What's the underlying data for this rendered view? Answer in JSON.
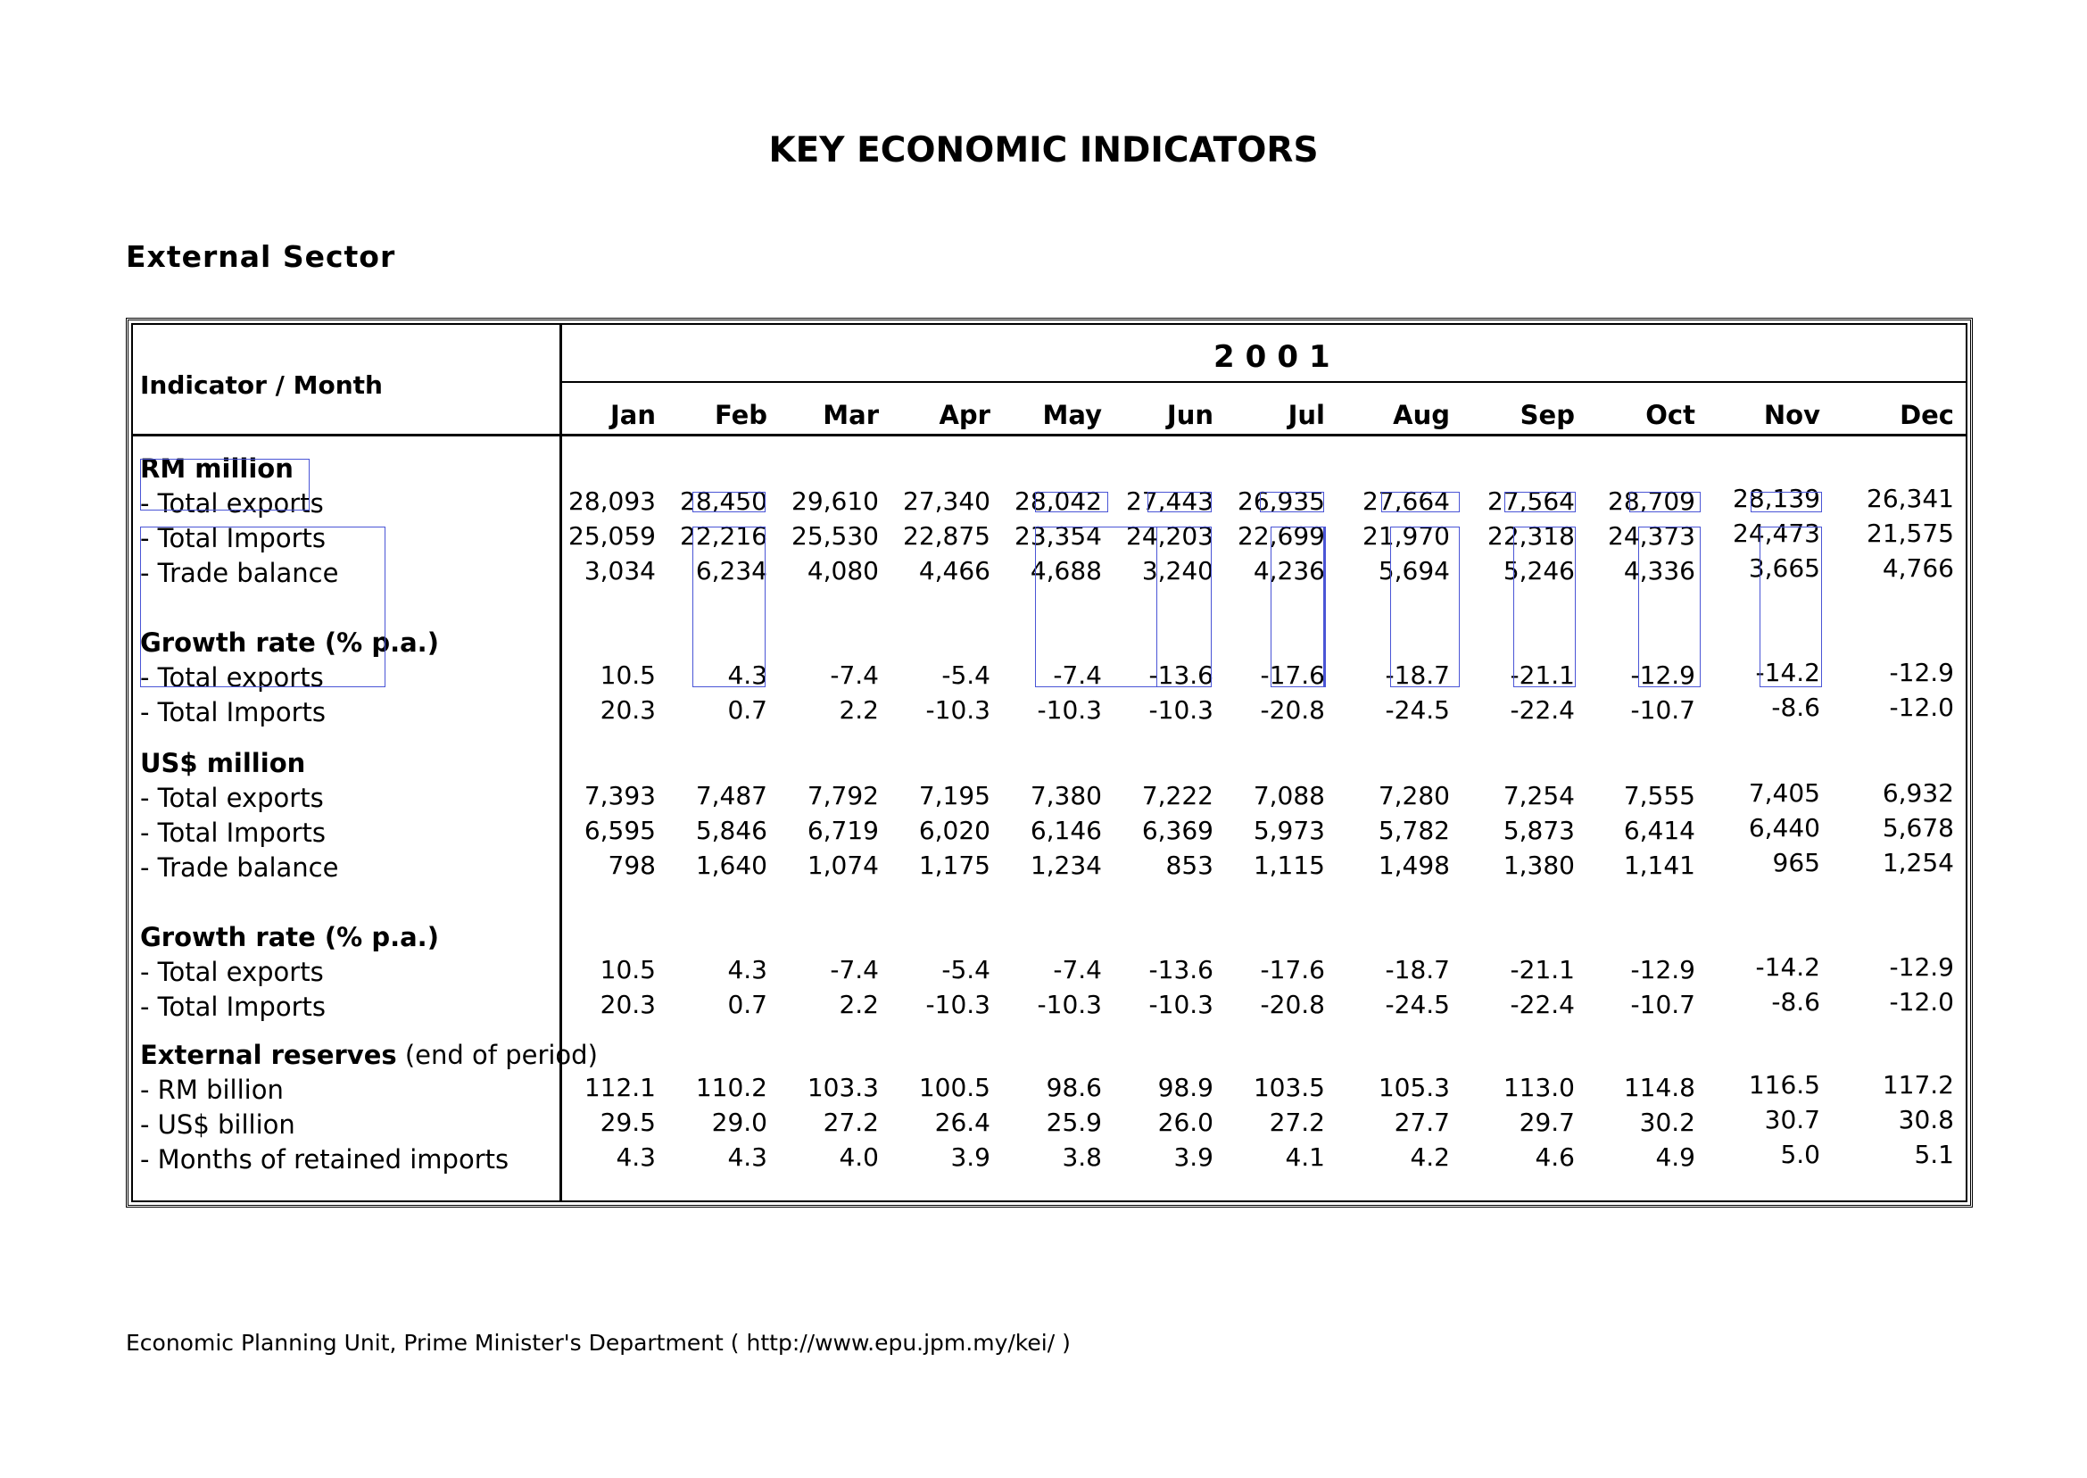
{
  "title": "KEY ECONOMIC INDICATORS",
  "section": "External Sector",
  "table": {
    "corner_label": "Indicator / Month",
    "year": "2001",
    "months": [
      "Jan",
      "Feb",
      "Mar",
      "Apr",
      "May",
      "Jun",
      "Jul",
      "Aug",
      "Sep",
      "Oct",
      "Nov",
      "Dec"
    ],
    "groups": [
      {
        "header": "RM million",
        "rows": [
          {
            "label": "- Total exports",
            "values": [
              "28,093",
              "28,450",
              "29,610",
              "27,340",
              "28,042",
              "27,443",
              "26,935",
              "27,664",
              "27,564",
              "28,709",
              "28,139",
              "26,341"
            ]
          },
          {
            "label": "- Total Imports",
            "values": [
              "25,059",
              "22,216",
              "25,530",
              "22,875",
              "23,354",
              "24,203",
              "22,699",
              "21,970",
              "22,318",
              "24,373",
              "24,473",
              "21,575"
            ]
          },
          {
            "label": "- Trade balance",
            "values": [
              "3,034",
              "6,234",
              "4,080",
              "4,466",
              "4,688",
              "3,240",
              "4,236",
              "5,694",
              "5,246",
              "4,336",
              "3,665",
              "4,766"
            ]
          }
        ]
      },
      {
        "header": "Growth rate (% p.a.)",
        "rows": [
          {
            "label": "- Total exports",
            "values": [
              "10.5",
              "4.3",
              "-7.4",
              "-5.4",
              "-7.4",
              "-13.6",
              "-17.6",
              "-18.7",
              "-21.1",
              "-12.9",
              "-14.2",
              "-12.9"
            ]
          },
          {
            "label": "- Total Imports",
            "values": [
              "20.3",
              "0.7",
              "2.2",
              "-10.3",
              "-10.3",
              "-10.3",
              "-20.8",
              "-24.5",
              "-22.4",
              "-10.7",
              "-8.6",
              "-12.0"
            ]
          }
        ]
      },
      {
        "header": "US$ million",
        "rows": [
          {
            "label": "- Total exports",
            "values": [
              "7,393",
              "7,487",
              "7,792",
              "7,195",
              "7,380",
              "7,222",
              "7,088",
              "7,280",
              "7,254",
              "7,555",
              "7,405",
              "6,932"
            ]
          },
          {
            "label": "- Total Imports",
            "values": [
              "6,595",
              "5,846",
              "6,719",
              "6,020",
              "6,146",
              "6,369",
              "5,973",
              "5,782",
              "5,873",
              "6,414",
              "6,440",
              "5,678"
            ]
          },
          {
            "label": "- Trade balance",
            "values": [
              "798",
              "1,640",
              "1,074",
              "1,175",
              "1,234",
              "853",
              "1,115",
              "1,498",
              "1,380",
              "1,141",
              "965",
              "1,254"
            ]
          }
        ]
      },
      {
        "header": "Growth rate (% p.a.)",
        "rows": [
          {
            "label": "- Total exports",
            "values": [
              "10.5",
              "4.3",
              "-7.4",
              "-5.4",
              "-7.4",
              "-13.6",
              "-17.6",
              "-18.7",
              "-21.1",
              "-12.9",
              "-14.2",
              "-12.9"
            ]
          },
          {
            "label": "- Total Imports",
            "values": [
              "20.3",
              "0.7",
              "2.2",
              "-10.3",
              "-10.3",
              "-10.3",
              "-20.8",
              "-24.5",
              "-22.4",
              "-10.7",
              "-8.6",
              "-12.0"
            ]
          }
        ]
      },
      {
        "header": "External reserves",
        "header_suffix": "(end of period)",
        "rows": [
          {
            "label": "- RM billion",
            "values": [
              "112.1",
              "110.2",
              "103.3",
              "100.5",
              "98.6",
              "98.9",
              "103.5",
              "105.3",
              "113.0",
              "114.8",
              "116.5",
              "117.2"
            ]
          },
          {
            "label": "- US$ billion",
            "values": [
              "29.5",
              "29.0",
              "27.2",
              "26.4",
              "25.9",
              "26.0",
              "27.2",
              "27.7",
              "29.7",
              "30.2",
              "30.7",
              "30.8"
            ]
          },
          {
            "label": "- Months of retained imports",
            "values": [
              "4.3",
              "4.3",
              "4.0",
              "3.9",
              "3.8",
              "3.9",
              "4.1",
              "4.2",
              "4.6",
              "4.9",
              "5.0",
              "5.1"
            ]
          }
        ]
      }
    ]
  },
  "footer": "Economic Planning Unit, Prime Minister's Department ( http://www.epu.jpm.my/kei/ )",
  "colors": {
    "annotation_box": "#4a55d6",
    "text": "#000000"
  }
}
